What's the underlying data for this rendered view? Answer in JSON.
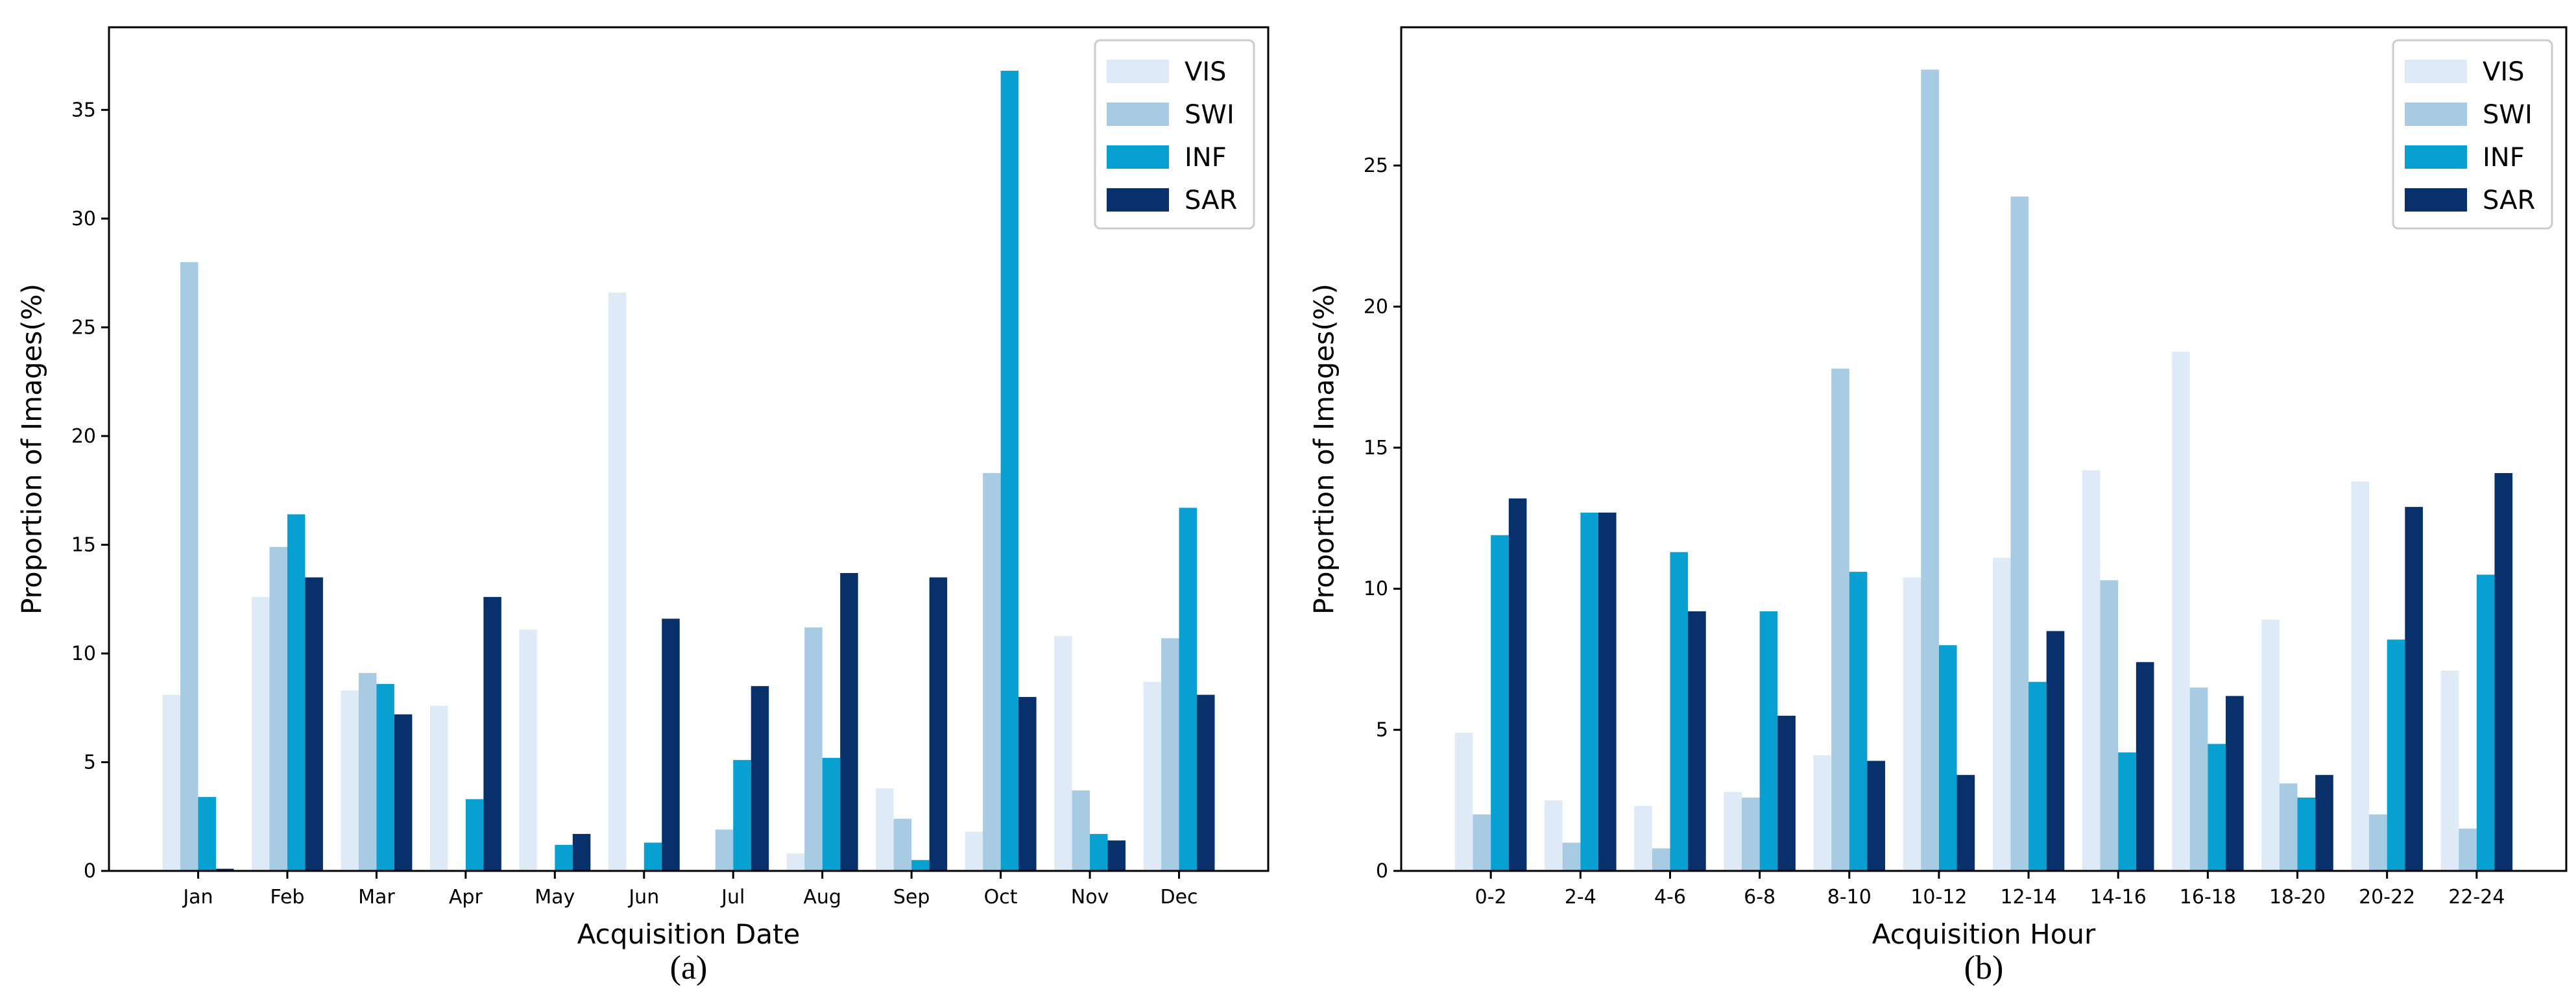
{
  "colors": {
    "VIS": "#deebf7",
    "SWI": "#a6cbe3",
    "INF": "#08a0d0",
    "SAR": "#08306b"
  },
  "chart_data": [
    {
      "type": "bar",
      "caption": "(a)",
      "xlabel": "Acquisition Date",
      "ylabel": "Proportion of Images(%)",
      "ylim": [
        0,
        38.8
      ],
      "yticks": [
        0,
        5,
        10,
        15,
        20,
        25,
        30,
        35
      ],
      "legend_position": "top-right",
      "categories": [
        "Jan",
        "Feb",
        "Mar",
        "Apr",
        "May",
        "Jun",
        "Jul",
        "Aug",
        "Sep",
        "Oct",
        "Nov",
        "Dec"
      ],
      "series": [
        {
          "name": "VIS",
          "values": [
            8.1,
            12.6,
            8.3,
            7.6,
            11.1,
            26.6,
            0.0,
            0.8,
            3.8,
            1.8,
            10.8,
            8.7
          ]
        },
        {
          "name": "SWI",
          "values": [
            28.0,
            14.9,
            9.1,
            0.0,
            0.0,
            0.0,
            1.9,
            11.2,
            2.4,
            18.3,
            3.7,
            10.7
          ]
        },
        {
          "name": "INF",
          "values": [
            3.4,
            16.4,
            8.6,
            3.3,
            1.2,
            1.3,
            5.1,
            5.2,
            0.5,
            36.8,
            1.7,
            16.7
          ]
        },
        {
          "name": "SAR",
          "values": [
            0.1,
            13.5,
            7.2,
            12.6,
            1.7,
            11.6,
            8.5,
            13.7,
            13.5,
            8.0,
            1.4,
            8.1
          ]
        }
      ]
    },
    {
      "type": "bar",
      "caption": "(b)",
      "xlabel": "Acquisition Hour",
      "ylabel": "Proportion of Images(%)",
      "ylim": [
        0,
        29.9
      ],
      "yticks": [
        0,
        5,
        10,
        15,
        20,
        25
      ],
      "legend_position": "top-right",
      "categories": [
        "0-2",
        "2-4",
        "4-6",
        "6-8",
        "8-10",
        "10-12",
        "12-14",
        "14-16",
        "16-18",
        "18-20",
        "20-22",
        "22-24"
      ],
      "series": [
        {
          "name": "VIS",
          "values": [
            4.9,
            2.5,
            2.3,
            2.8,
            4.1,
            10.4,
            11.1,
            14.2,
            18.4,
            8.9,
            13.8,
            7.1
          ]
        },
        {
          "name": "SWI",
          "values": [
            2.0,
            1.0,
            0.8,
            2.6,
            17.8,
            28.4,
            23.9,
            10.3,
            6.5,
            3.1,
            2.0,
            1.5
          ]
        },
        {
          "name": "INF",
          "values": [
            11.9,
            12.7,
            11.3,
            9.2,
            10.6,
            8.0,
            6.7,
            4.2,
            4.5,
            2.6,
            8.2,
            10.5
          ]
        },
        {
          "name": "SAR",
          "values": [
            13.2,
            12.7,
            9.2,
            5.5,
            3.9,
            3.4,
            8.5,
            7.4,
            6.2,
            3.4,
            12.9,
            14.1
          ]
        }
      ]
    }
  ]
}
